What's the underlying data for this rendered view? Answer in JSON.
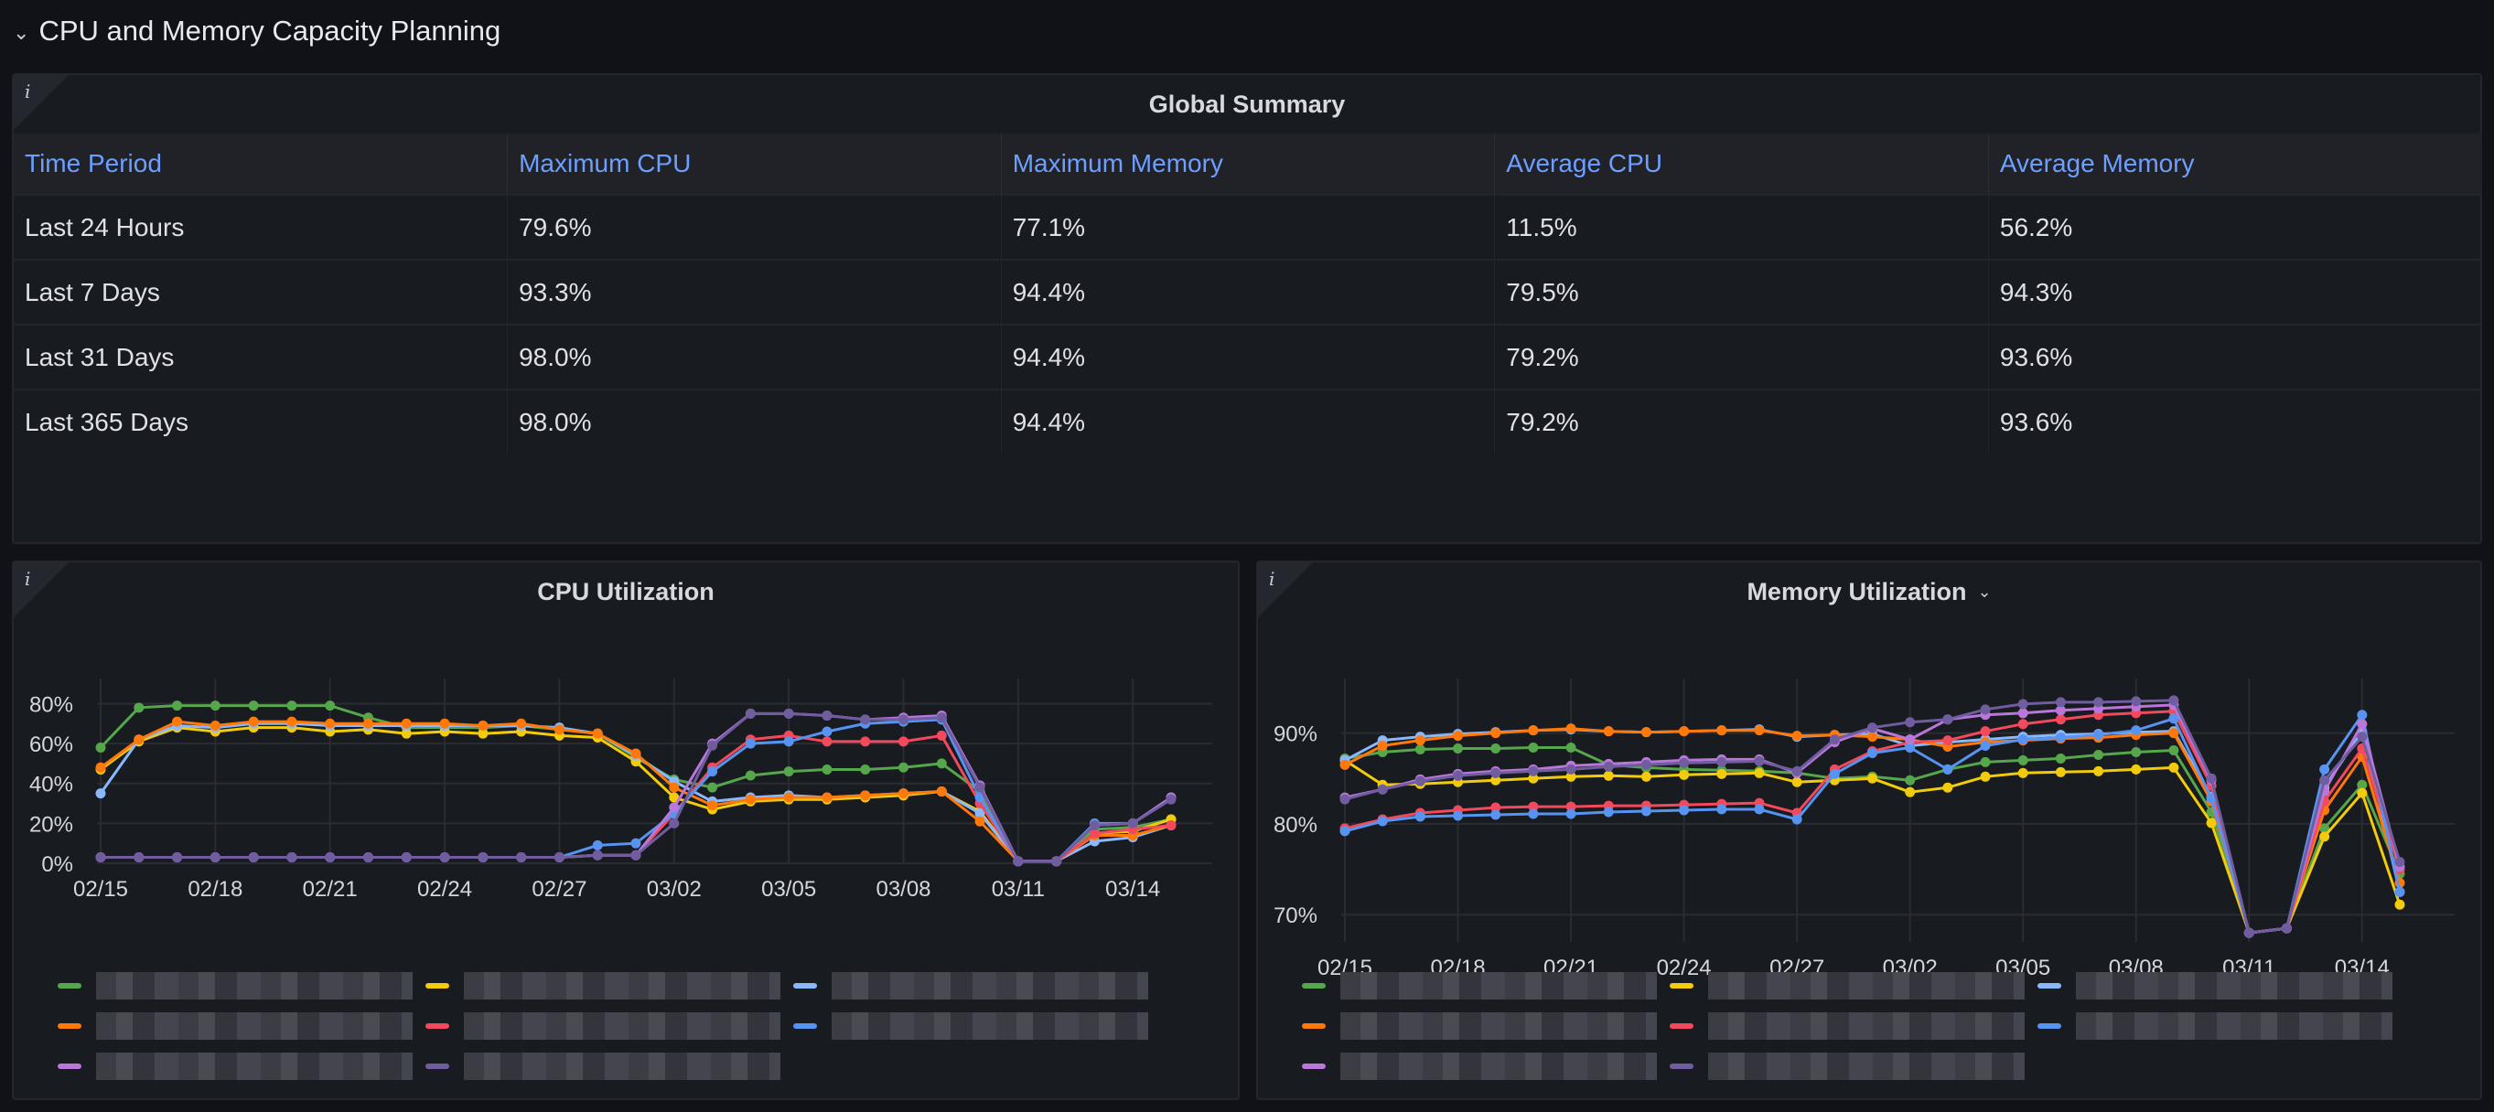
{
  "row": {
    "title": "CPU and Memory Capacity Planning"
  },
  "summary": {
    "title": "Global Summary",
    "columns": [
      "Time Period",
      "Maximum CPU",
      "Maximum Memory",
      "Average CPU",
      "Average Memory"
    ],
    "rows": [
      [
        "Last 24 Hours",
        "79.6%",
        "77.1%",
        "11.5%",
        "56.2%"
      ],
      [
        "Last 7 Days",
        "93.3%",
        "94.4%",
        "79.5%",
        "94.3%"
      ],
      [
        "Last 31 Days",
        "98.0%",
        "94.4%",
        "79.2%",
        "93.6%"
      ],
      [
        "Last 365 Days",
        "98.0%",
        "94.4%",
        "79.2%",
        "93.6%"
      ]
    ]
  },
  "colors": [
    "#56a64b",
    "#f2cc0c",
    "#8ab8ff",
    "#ff780a",
    "#f2495c",
    "#5794f2",
    "#b877d9",
    "#705da0"
  ],
  "chart_data": [
    {
      "type": "line",
      "title": "CPU Utilization",
      "xlabel": "",
      "ylabel": "",
      "x": [
        "02/15",
        "02/16",
        "02/17",
        "02/18",
        "02/19",
        "02/20",
        "02/21",
        "02/22",
        "02/23",
        "02/24",
        "02/25",
        "02/26",
        "02/27",
        "02/28",
        "03/01",
        "03/02",
        "03/03",
        "03/04",
        "03/05",
        "03/06",
        "03/07",
        "03/08",
        "03/09",
        "03/10",
        "03/11",
        "03/12",
        "03/13",
        "03/14",
        "03/15"
      ],
      "x_tick_labels": [
        "02/15",
        "02/18",
        "02/21",
        "02/24",
        "02/27",
        "03/02",
        "03/05",
        "03/08",
        "03/11",
        "03/14"
      ],
      "y_tick_labels": [
        "0%",
        "20%",
        "40%",
        "60%",
        "80%"
      ],
      "ylim": [
        0,
        88
      ],
      "yticks": [
        0,
        20,
        40,
        60,
        80
      ],
      "grid": true,
      "legend_position": "bottom",
      "series": [
        {
          "values": [
            58,
            78,
            79,
            79,
            79,
            79,
            79,
            73,
            68,
            68,
            68,
            69,
            67,
            65,
            53,
            42,
            38,
            44,
            46,
            47,
            47,
            48,
            50,
            36,
            1,
            1,
            17,
            18,
            22
          ]
        },
        {
          "values": [
            47,
            61,
            68,
            66,
            68,
            68,
            66,
            67,
            65,
            66,
            65,
            66,
            64,
            63,
            51,
            33,
            27,
            31,
            32,
            32,
            33,
            34,
            36,
            26,
            1,
            1,
            15,
            16,
            22
          ]
        },
        {
          "values": [
            35,
            62,
            69,
            68,
            70,
            70,
            69,
            69,
            69,
            69,
            69,
            69,
            68,
            65,
            54,
            41,
            31,
            33,
            34,
            33,
            34,
            35,
            36,
            25,
            1,
            1,
            11,
            13,
            19
          ]
        },
        {
          "values": [
            48,
            62,
            71,
            69,
            71,
            71,
            70,
            70,
            70,
            70,
            69,
            70,
            67,
            65,
            55,
            38,
            29,
            32,
            33,
            33,
            34,
            35,
            36,
            21,
            1,
            1,
            14,
            14,
            19
          ]
        },
        {
          "values": [
            3,
            3,
            3,
            3,
            3,
            3,
            3,
            3,
            3,
            3,
            3,
            3,
            3,
            4,
            4,
            25,
            48,
            62,
            64,
            61,
            61,
            61,
            64,
            30,
            1,
            1,
            15,
            17,
            19
          ]
        },
        {
          "values": [
            3,
            3,
            3,
            3,
            3,
            3,
            3,
            3,
            3,
            3,
            3,
            3,
            3,
            9,
            10,
            25,
            46,
            60,
            61,
            66,
            70,
            71,
            72,
            33,
            1,
            1,
            20,
            20,
            33
          ]
        },
        {
          "values": [
            3,
            3,
            3,
            3,
            3,
            3,
            3,
            3,
            3,
            3,
            3,
            3,
            3,
            4,
            4,
            28,
            60,
            75,
            75,
            74,
            72,
            73,
            74,
            39,
            1,
            1,
            19,
            20,
            33
          ]
        },
        {
          "values": [
            3,
            3,
            3,
            3,
            3,
            3,
            3,
            3,
            3,
            3,
            3,
            3,
            3,
            4,
            4,
            20,
            59,
            75,
            75,
            74,
            72,
            72,
            73,
            38,
            1,
            1,
            19,
            20,
            32
          ]
        }
      ]
    },
    {
      "type": "line",
      "title": "Memory Utilization",
      "xlabel": "",
      "ylabel": "",
      "x": [
        "02/15",
        "02/16",
        "02/17",
        "02/18",
        "02/19",
        "02/20",
        "02/21",
        "02/22",
        "02/23",
        "02/24",
        "02/25",
        "02/26",
        "02/27",
        "02/28",
        "03/01",
        "03/02",
        "03/03",
        "03/04",
        "03/05",
        "03/06",
        "03/07",
        "03/08",
        "03/09",
        "03/10",
        "03/11",
        "03/12",
        "03/13",
        "03/14",
        "03/15"
      ],
      "x_tick_labels": [
        "02/15",
        "02/18",
        "02/21",
        "02/24",
        "02/27",
        "03/02",
        "03/05",
        "03/08",
        "03/11",
        "03/14"
      ],
      "y_tick_labels": [
        "70%",
        "80%",
        "90%"
      ],
      "ylim": [
        67,
        95
      ],
      "yticks": [
        70,
        80,
        90
      ],
      "grid": true,
      "legend_position": "bottom",
      "series": [
        {
          "values": [
            87.2,
            87.9,
            88.2,
            88.3,
            88.3,
            88.4,
            88.4,
            86.5,
            86.2,
            86.0,
            85.9,
            85.8,
            85.6,
            85.0,
            85.2,
            84.8,
            86.0,
            86.8,
            87.0,
            87.2,
            87.6,
            87.9,
            88.1,
            81.3,
            68.0,
            68.5,
            79.5,
            84.3,
            74.5
          ]
        },
        {
          "values": [
            87.0,
            84.3,
            84.4,
            84.6,
            84.8,
            85.0,
            85.2,
            85.3,
            85.2,
            85.4,
            85.5,
            85.6,
            84.6,
            84.8,
            85.0,
            83.5,
            84.0,
            85.2,
            85.6,
            85.7,
            85.8,
            86.0,
            86.2,
            80.1,
            68.0,
            68.5,
            78.6,
            83.4,
            71.1
          ]
        },
        {
          "values": [
            87.0,
            89.2,
            89.6,
            89.9,
            90.1,
            90.3,
            90.4,
            90.2,
            90.1,
            90.2,
            90.3,
            90.4,
            89.6,
            89.8,
            89.9,
            88.6,
            89.0,
            89.3,
            89.6,
            89.8,
            89.9,
            90.1,
            90.2,
            83.0,
            68.0,
            68.5,
            84.0,
            90.2,
            72.5
          ]
        },
        {
          "values": [
            86.5,
            88.6,
            89.2,
            89.7,
            90.0,
            90.3,
            90.5,
            90.2,
            90.1,
            90.2,
            90.3,
            90.3,
            89.7,
            89.8,
            89.6,
            89.3,
            88.5,
            89.0,
            89.2,
            89.4,
            89.5,
            89.8,
            90.0,
            82.5,
            68.0,
            68.5,
            81.5,
            87.4,
            73.5
          ]
        },
        {
          "values": [
            79.5,
            80.5,
            81.2,
            81.5,
            81.8,
            81.9,
            81.9,
            82.0,
            82.0,
            82.1,
            82.2,
            82.3,
            81.2,
            86.0,
            88.0,
            89.0,
            89.2,
            90.2,
            91.0,
            91.5,
            92.0,
            92.2,
            92.4,
            84.2,
            68.0,
            68.5,
            82.5,
            88.3,
            75.0
          ]
        },
        {
          "values": [
            79.2,
            80.3,
            80.8,
            80.9,
            81.0,
            81.1,
            81.1,
            81.3,
            81.4,
            81.5,
            81.6,
            81.6,
            80.5,
            85.5,
            87.8,
            88.4,
            86.0,
            88.6,
            89.3,
            89.5,
            89.8,
            90.3,
            91.6,
            82.8,
            68.0,
            68.5,
            86.0,
            92.0,
            72.5
          ]
        },
        {
          "values": [
            82.9,
            83.8,
            84.9,
            85.5,
            85.8,
            86.0,
            86.4,
            86.6,
            86.8,
            87.0,
            87.1,
            87.1,
            85.6,
            89.0,
            90.5,
            89.3,
            91.5,
            92.0,
            92.2,
            92.5,
            92.7,
            92.9,
            93.1,
            84.8,
            68.0,
            68.5,
            83.6,
            91.0,
            75.3
          ]
        },
        {
          "values": [
            82.7,
            83.8,
            84.7,
            85.3,
            85.6,
            85.8,
            86.0,
            86.3,
            86.5,
            86.7,
            86.8,
            86.9,
            85.8,
            89.3,
            90.6,
            91.2,
            91.5,
            92.6,
            93.2,
            93.4,
            93.4,
            93.5,
            93.6,
            85.0,
            68.0,
            68.5,
            84.8,
            89.6,
            75.8
          ]
        }
      ]
    }
  ]
}
